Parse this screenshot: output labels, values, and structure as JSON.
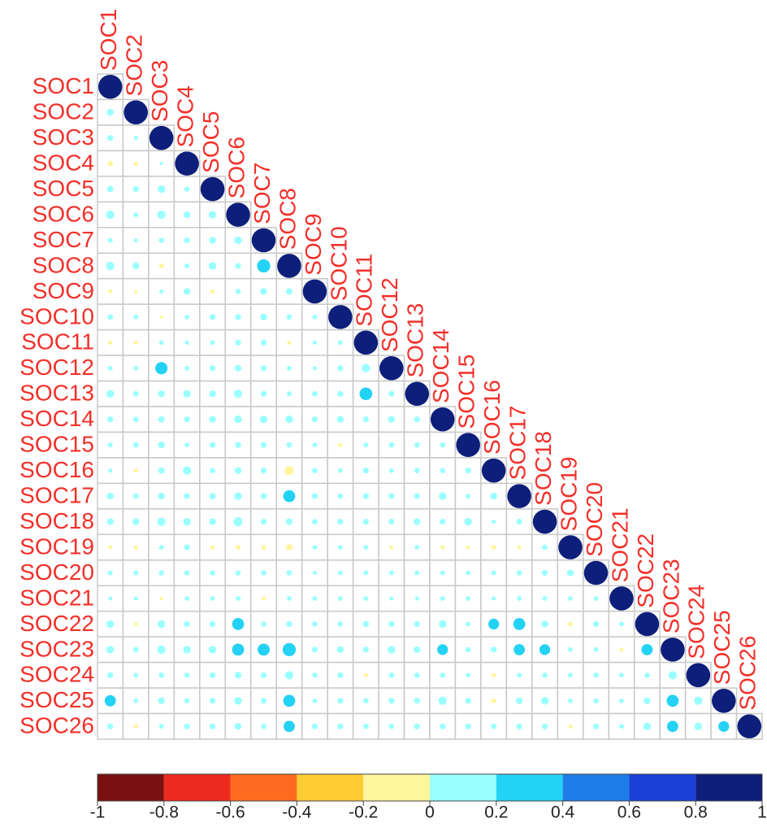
{
  "chart_data": {
    "type": "correlation-matrix",
    "labels": [
      "SOC1",
      "SOC2",
      "SOC3",
      "SOC4",
      "SOC5",
      "SOC6",
      "SOC7",
      "SOC8",
      "SOC9",
      "SOC10",
      "SOC11",
      "SOC12",
      "SOC13",
      "SOC14",
      "SOC15",
      "SOC16",
      "SOC17",
      "SOC18",
      "SOC19",
      "SOC20",
      "SOC21",
      "SOC22",
      "SOC23",
      "SOC24",
      "SOC25",
      "SOC26"
    ],
    "matrix": [
      [
        1
      ],
      [
        0.08,
        1
      ],
      [
        0.06,
        0.03,
        1
      ],
      [
        -0.05,
        -0.03,
        0.02,
        1
      ],
      [
        0.07,
        0.06,
        0.1,
        0.05,
        1
      ],
      [
        0.12,
        0.04,
        0.12,
        0.08,
        0.1,
        1
      ],
      [
        0.04,
        0.03,
        0.05,
        0.06,
        0.08,
        0.1,
        1
      ],
      [
        0.12,
        0.08,
        -0.04,
        0.04,
        0.1,
        0.06,
        0.3,
        1
      ],
      [
        -0.03,
        -0.02,
        0.03,
        0.08,
        -0.03,
        0.05,
        0.08,
        0.07,
        1
      ],
      [
        0.05,
        0.04,
        -0.02,
        0.04,
        0.06,
        0.06,
        0.08,
        0.05,
        0.04,
        1
      ],
      [
        -0.03,
        -0.03,
        0.04,
        0.03,
        0.04,
        0.06,
        0.06,
        -0.03,
        0.03,
        0.04,
        1
      ],
      [
        0.04,
        0.04,
        0.26,
        0.04,
        0.06,
        0.08,
        0.06,
        0.04,
        0.03,
        0.06,
        0.12,
        1
      ],
      [
        0.1,
        0.05,
        0.08,
        0.1,
        0.08,
        0.12,
        0.06,
        0.04,
        0.05,
        0.06,
        0.28,
        0.06,
        1
      ],
      [
        0.06,
        0.05,
        0.07,
        0.06,
        0.08,
        0.1,
        0.1,
        0.1,
        0.06,
        0.08,
        0.06,
        0.08,
        0.06,
        1
      ],
      [
        0.04,
        0.05,
        0.08,
        0.04,
        0.06,
        0.06,
        0.06,
        0.05,
        0.04,
        -0.03,
        0.04,
        0.05,
        0.05,
        0.05,
        1
      ],
      [
        0.03,
        -0.03,
        0.07,
        0.12,
        0.05,
        0.08,
        0.06,
        -0.14,
        0.05,
        0.04,
        0.06,
        0.04,
        0.05,
        0.05,
        0.06,
        1
      ],
      [
        0.08,
        0.05,
        0.08,
        0.06,
        0.07,
        0.1,
        0.06,
        0.25,
        0.06,
        0.05,
        0.06,
        0.06,
        0.06,
        0.1,
        0.04,
        0.08,
        1
      ],
      [
        0.08,
        0.08,
        0.12,
        0.1,
        0.08,
        0.14,
        0.06,
        0.08,
        0.05,
        0.06,
        0.06,
        0.06,
        0.08,
        0.06,
        0.1,
        0.03,
        0.06,
        1
      ],
      [
        -0.03,
        -0.03,
        0.04,
        0.06,
        -0.03,
        -0.04,
        -0.04,
        -0.07,
        0.04,
        0.04,
        0.04,
        -0.03,
        0.04,
        -0.03,
        -0.03,
        -0.04,
        -0.03,
        0.05,
        1
      ],
      [
        0.04,
        0.04,
        0.05,
        0.05,
        0.05,
        0.05,
        0.05,
        0.05,
        0.03,
        0.04,
        0.04,
        0.04,
        0.04,
        0.04,
        0.04,
        0.04,
        0.05,
        0.06,
        0.08,
        1
      ],
      [
        0.03,
        0.03,
        -0.02,
        0.04,
        0.04,
        0.04,
        -0.03,
        0.04,
        0.04,
        0.04,
        0.04,
        0.03,
        0.03,
        0.04,
        0.04,
        0.03,
        0.04,
        0.04,
        0.04,
        0.04,
        1
      ],
      [
        0.1,
        -0.03,
        0.1,
        0.06,
        0.06,
        0.25,
        0.05,
        0.06,
        0.05,
        0.05,
        0.06,
        0.06,
        0.06,
        0.1,
        0.04,
        0.2,
        0.25,
        0.08,
        -0.04,
        0.06,
        0.04,
        1
      ],
      [
        0.1,
        0.05,
        0.12,
        0.1,
        0.1,
        0.25,
        0.25,
        0.3,
        0.06,
        0.08,
        0.06,
        0.1,
        0.08,
        0.2,
        0.05,
        0.06,
        0.22,
        0.2,
        0.04,
        0.04,
        -0.03,
        0.22,
        1
      ],
      [
        0.06,
        0.04,
        0.05,
        0.05,
        0.06,
        0.08,
        0.06,
        0.12,
        0.05,
        0.06,
        -0.03,
        0.05,
        0.05,
        0.05,
        0.04,
        -0.03,
        0.04,
        0.05,
        0.04,
        0.05,
        0.04,
        0.05,
        0.12,
        1
      ],
      [
        0.22,
        0.04,
        0.08,
        0.05,
        0.06,
        0.1,
        0.06,
        0.25,
        0.04,
        0.06,
        0.05,
        0.06,
        0.06,
        0.12,
        0.06,
        -0.04,
        0.08,
        0.1,
        0.04,
        0.05,
        0.04,
        0.08,
        0.25,
        0.12,
        1
      ],
      [
        0.06,
        -0.03,
        0.04,
        0.06,
        0.06,
        0.08,
        0.05,
        0.22,
        0.06,
        0.06,
        0.05,
        0.05,
        0.06,
        0.06,
        0.06,
        0.05,
        0.06,
        0.06,
        -0.03,
        0.06,
        0.04,
        0.1,
        0.22,
        0.1,
        0.2,
        1
      ]
    ],
    "clim": [
      -1,
      1
    ],
    "colors": [
      "#7a1010",
      "#ec2a1e",
      "#ff6a20",
      "#ffcc33",
      "#fff59a",
      "#99ffff",
      "#24d2f5",
      "#1e7ce8",
      "#1a3fd6",
      "#0d1f7a"
    ],
    "colorbar_ticks": [
      -1,
      -0.8,
      -0.6,
      -0.4,
      -0.2,
      0,
      0.2,
      0.4,
      0.6,
      0.8,
      1
    ]
  }
}
